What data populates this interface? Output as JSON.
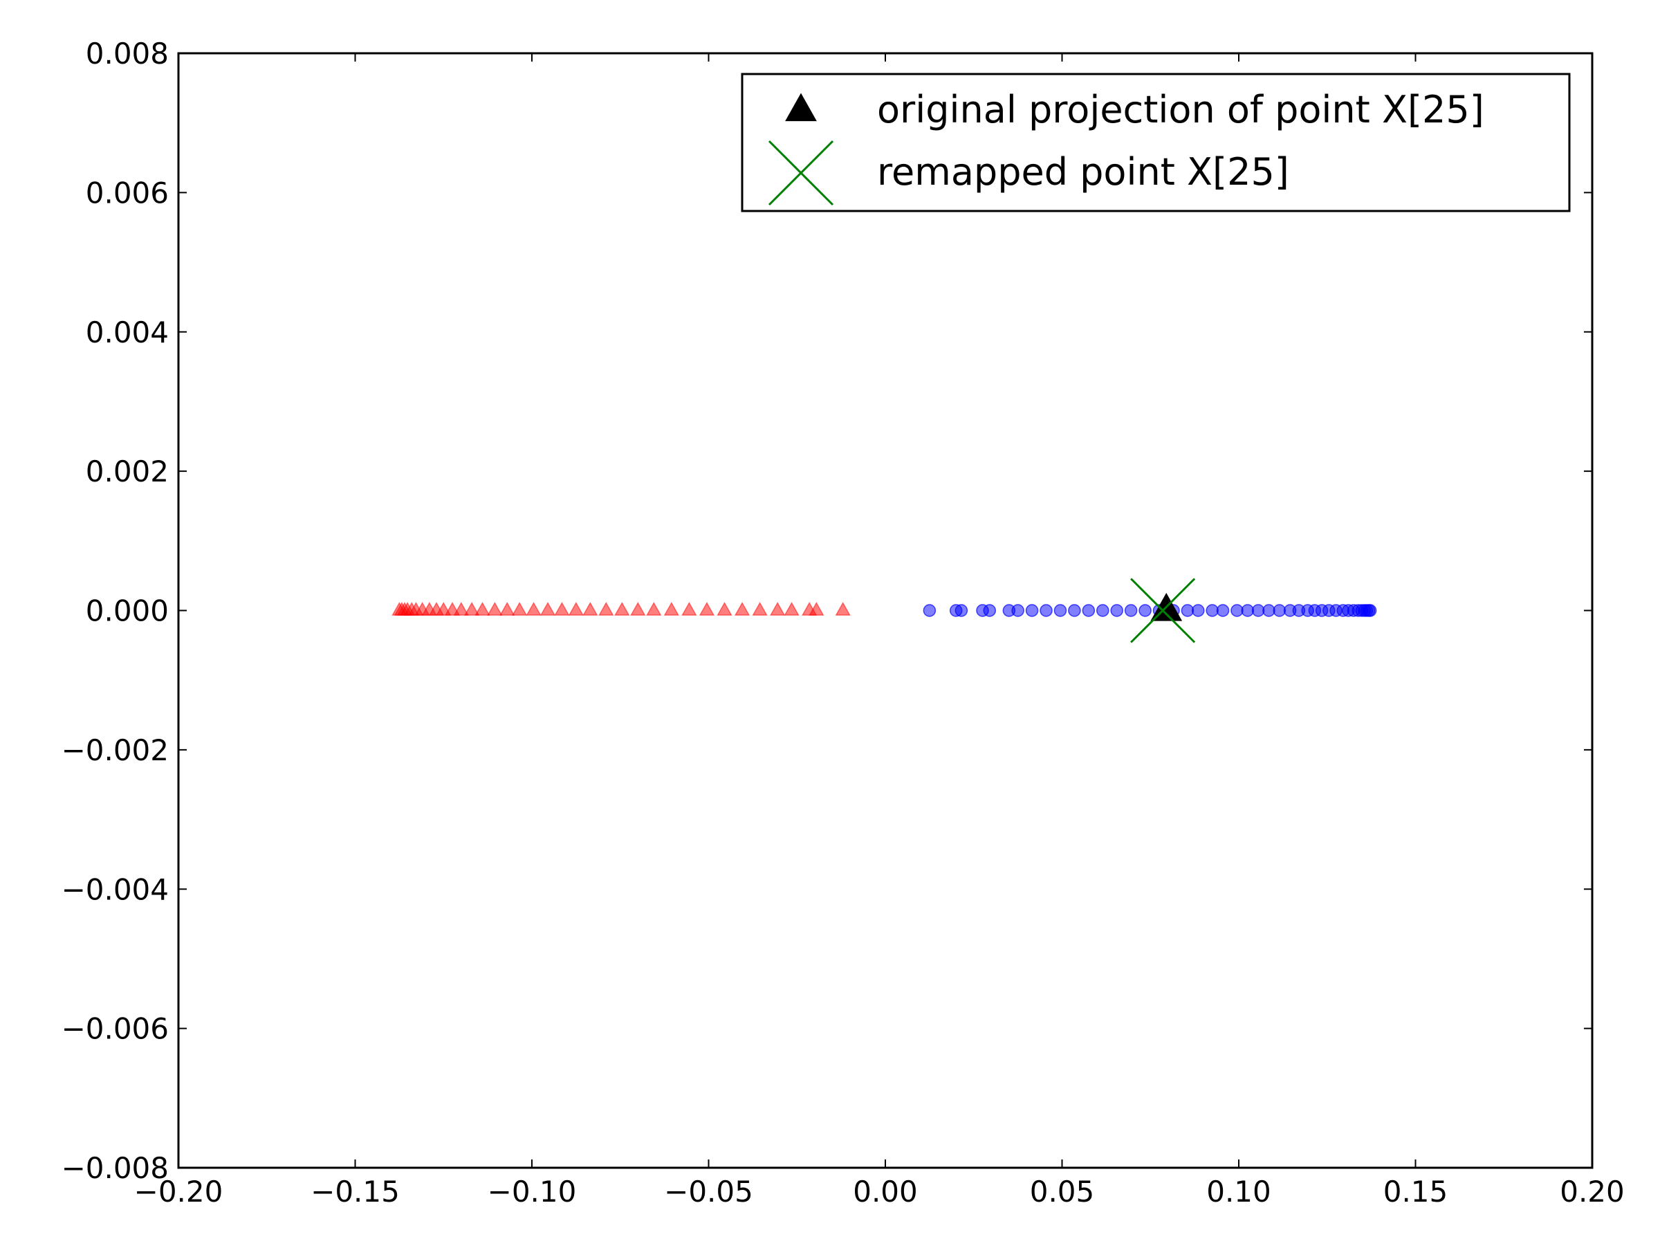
{
  "chart_data": {
    "type": "scatter",
    "title": "",
    "xlabel": "",
    "ylabel": "",
    "xlim": [
      -0.2,
      0.2
    ],
    "ylim": [
      -0.008,
      0.008
    ],
    "xticks": [
      -0.2,
      -0.15,
      -0.1,
      -0.05,
      0.0,
      0.05,
      0.1,
      0.15,
      0.2
    ],
    "xtick_labels": [
      "−0.20",
      "−0.15",
      "−0.10",
      "−0.05",
      "0.00",
      "0.05",
      "0.10",
      "0.15",
      "0.20"
    ],
    "yticks": [
      0.008,
      0.006,
      0.004,
      0.002,
      0.0,
      -0.002,
      -0.004,
      -0.006,
      -0.008
    ],
    "ytick_labels": [
      "0.008",
      "0.006",
      "0.004",
      "0.002",
      "0.000",
      "−0.002",
      "−0.004",
      "−0.006",
      "−0.008"
    ],
    "grid": false,
    "legend_position": "top-right",
    "series": [
      {
        "marker": "triangle",
        "color": "#ff0000",
        "alpha": 0.5,
        "points": [
          [
            -0.1375,
            0.0
          ],
          [
            -0.1368,
            0.0
          ],
          [
            -0.136,
            0.0
          ],
          [
            -0.1352,
            0.0
          ],
          [
            -0.134,
            0.0
          ],
          [
            -0.1328,
            0.0
          ],
          [
            -0.131,
            0.0
          ],
          [
            -0.129,
            0.0
          ],
          [
            -0.127,
            0.0
          ],
          [
            -0.125,
            0.0
          ],
          [
            -0.1225,
            0.0
          ],
          [
            -0.12,
            0.0
          ],
          [
            -0.117,
            0.0
          ],
          [
            -0.114,
            0.0
          ],
          [
            -0.1105,
            0.0
          ],
          [
            -0.107,
            0.0
          ],
          [
            -0.1035,
            0.0
          ],
          [
            -0.0995,
            0.0
          ],
          [
            -0.0955,
            0.0
          ],
          [
            -0.0915,
            0.0
          ],
          [
            -0.0875,
            0.0
          ],
          [
            -0.0835,
            0.0
          ],
          [
            -0.079,
            0.0
          ],
          [
            -0.0745,
            0.0
          ],
          [
            -0.07,
            0.0
          ],
          [
            -0.0655,
            0.0
          ],
          [
            -0.0605,
            0.0
          ],
          [
            -0.0555,
            0.0
          ],
          [
            -0.0505,
            0.0
          ],
          [
            -0.0455,
            0.0
          ],
          [
            -0.0405,
            0.0
          ],
          [
            -0.0355,
            0.0
          ],
          [
            -0.0305,
            0.0
          ],
          [
            -0.0265,
            0.0
          ],
          [
            -0.0215,
            0.0
          ],
          [
            -0.0195,
            0.0
          ],
          [
            -0.012,
            0.0
          ]
        ]
      },
      {
        "marker": "circle",
        "color": "#0000ff",
        "alpha": 0.5,
        "points": [
          [
            0.0125,
            0.0
          ],
          [
            0.02,
            0.0
          ],
          [
            0.0215,
            0.0
          ],
          [
            0.0275,
            0.0
          ],
          [
            0.0295,
            0.0
          ],
          [
            0.035,
            0.0
          ],
          [
            0.0375,
            0.0
          ],
          [
            0.0415,
            0.0
          ],
          [
            0.0455,
            0.0
          ],
          [
            0.0495,
            0.0
          ],
          [
            0.0535,
            0.0
          ],
          [
            0.0575,
            0.0
          ],
          [
            0.0615,
            0.0
          ],
          [
            0.0655,
            0.0
          ],
          [
            0.0695,
            0.0
          ],
          [
            0.0735,
            0.0
          ],
          [
            0.0775,
            0.0
          ],
          [
            0.0815,
            0.0
          ],
          [
            0.0855,
            0.0
          ],
          [
            0.0885,
            0.0
          ],
          [
            0.0925,
            0.0
          ],
          [
            0.0955,
            0.0
          ],
          [
            0.0995,
            0.0
          ],
          [
            0.1025,
            0.0
          ],
          [
            0.1055,
            0.0
          ],
          [
            0.1085,
            0.0
          ],
          [
            0.1115,
            0.0
          ],
          [
            0.1145,
            0.0
          ],
          [
            0.117,
            0.0
          ],
          [
            0.1195,
            0.0
          ],
          [
            0.1215,
            0.0
          ],
          [
            0.1235,
            0.0
          ],
          [
            0.1255,
            0.0
          ],
          [
            0.1275,
            0.0
          ],
          [
            0.1295,
            0.0
          ],
          [
            0.131,
            0.0
          ],
          [
            0.1325,
            0.0
          ],
          [
            0.1338,
            0.0
          ],
          [
            0.1348,
            0.0
          ],
          [
            0.1356,
            0.0
          ],
          [
            0.1362,
            0.0
          ],
          [
            0.1368,
            0.0
          ],
          [
            0.1372,
            0.0
          ]
        ]
      },
      {
        "name": "original projection of point X[25]",
        "marker": "triangle",
        "color": "#000000",
        "alpha": 1.0,
        "points": [
          [
            0.0795,
            0.0
          ]
        ]
      },
      {
        "name": "remapped point X[25]",
        "marker": "x",
        "color": "#008000",
        "alpha": 1.0,
        "points": [
          [
            0.0785,
            0.0
          ]
        ]
      }
    ]
  }
}
